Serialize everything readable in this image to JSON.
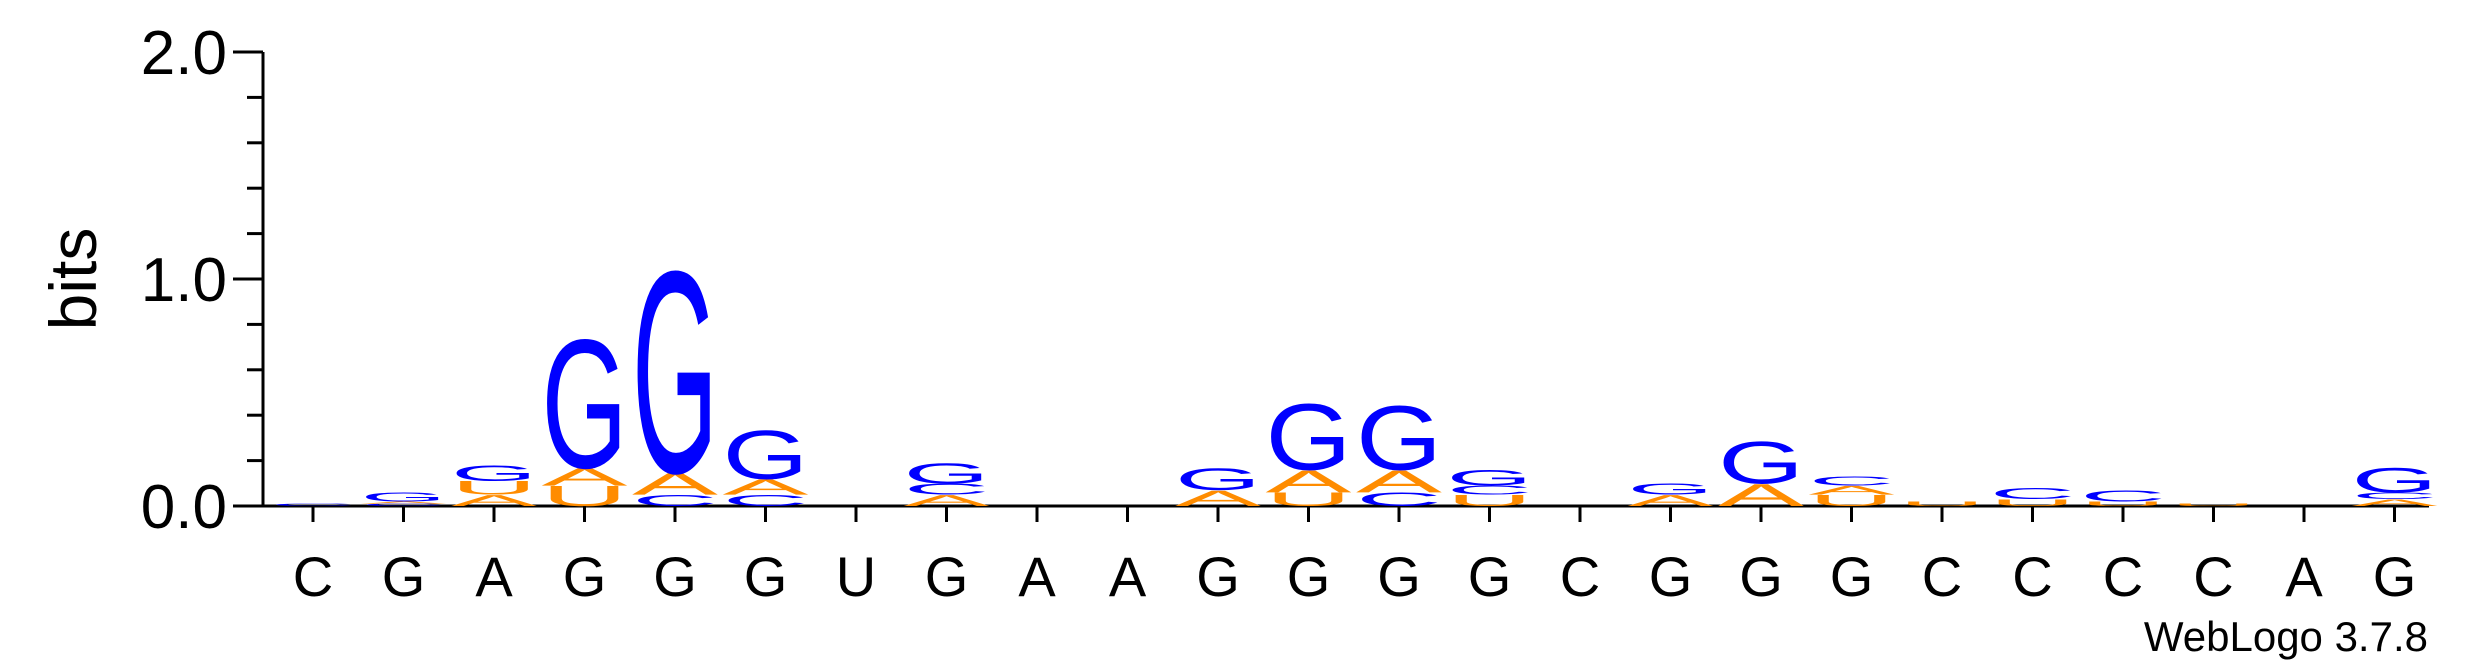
{
  "chart_data": {
    "type": "sequence-logo",
    "ylabel": "bits",
    "ylim": [
      0,
      2.0
    ],
    "yticks": [
      "0.0",
      "1.0",
      "2.0"
    ],
    "colors": {
      "G": "#0000ff",
      "A": "#ff8c00",
      "U": "#ff8c00",
      "C": "#0000ff"
    },
    "positions": [
      {
        "label": "C",
        "stack": [
          [
            "C",
            0.01
          ]
        ]
      },
      {
        "label": "G",
        "stack": [
          [
            "C",
            0.01
          ],
          [
            "A",
            0.01
          ],
          [
            "G",
            0.04
          ]
        ]
      },
      {
        "label": "A",
        "stack": [
          [
            "A",
            0.05
          ],
          [
            "U",
            0.06
          ],
          [
            "G",
            0.07
          ]
        ]
      },
      {
        "label": "G",
        "stack": [
          [
            "U",
            0.09
          ],
          [
            "A",
            0.08
          ],
          [
            "G",
            0.58
          ]
        ]
      },
      {
        "label": "G",
        "stack": [
          [
            "C",
            0.05
          ],
          [
            "A",
            0.1
          ],
          [
            "G",
            0.91
          ]
        ]
      },
      {
        "label": "G",
        "stack": [
          [
            "C",
            0.05
          ],
          [
            "A",
            0.07
          ],
          [
            "G",
            0.22
          ]
        ]
      },
      {
        "label": "U",
        "stack": []
      },
      {
        "label": "G",
        "stack": [
          [
            "A",
            0.05
          ],
          [
            "C",
            0.05
          ],
          [
            "G",
            0.09
          ]
        ]
      },
      {
        "label": "A",
        "stack": []
      },
      {
        "label": "A",
        "stack": []
      },
      {
        "label": "G",
        "stack": [
          [
            "A",
            0.07
          ],
          [
            "G",
            0.1
          ]
        ]
      },
      {
        "label": "G",
        "stack": [
          [
            "U",
            0.06
          ],
          [
            "A",
            0.1
          ],
          [
            "G",
            0.3
          ]
        ]
      },
      {
        "label": "G",
        "stack": [
          [
            "C",
            0.06
          ],
          [
            "A",
            0.1
          ],
          [
            "G",
            0.29
          ]
        ]
      },
      {
        "label": "G",
        "stack": [
          [
            "U",
            0.05
          ],
          [
            "C",
            0.04
          ],
          [
            "G",
            0.07
          ]
        ]
      },
      {
        "label": "C",
        "stack": []
      },
      {
        "label": "G",
        "stack": [
          [
            "A",
            0.05
          ],
          [
            "G",
            0.05
          ]
        ]
      },
      {
        "label": "G",
        "stack": [
          [
            "A",
            0.1
          ],
          [
            "G",
            0.19
          ]
        ]
      },
      {
        "label": "G",
        "stack": [
          [
            "U",
            0.05
          ],
          [
            "A",
            0.04
          ],
          [
            "C",
            0.04
          ]
        ]
      },
      {
        "label": "C",
        "stack": [
          [
            "U",
            0.02
          ]
        ]
      },
      {
        "label": "C",
        "stack": [
          [
            "U",
            0.03
          ],
          [
            "C",
            0.05
          ]
        ]
      },
      {
        "label": "C",
        "stack": [
          [
            "U",
            0.02
          ],
          [
            "C",
            0.05
          ]
        ]
      },
      {
        "label": "C",
        "stack": [
          [
            "U",
            0.01
          ]
        ]
      },
      {
        "label": "A",
        "stack": []
      },
      {
        "label": "G",
        "stack": [
          [
            "A",
            0.03
          ],
          [
            "C",
            0.03
          ],
          [
            "G",
            0.11
          ]
        ]
      }
    ]
  },
  "credit": "WebLogo 3.7.8"
}
